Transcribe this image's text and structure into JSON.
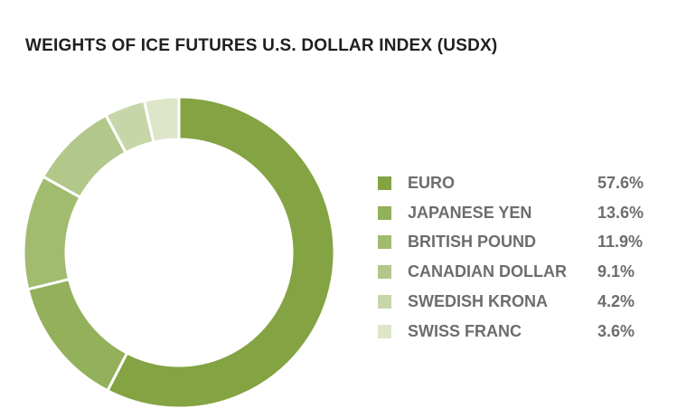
{
  "title": "WEIGHTS OF ICE FUTURES U.S. DOLLAR INDEX (USDX)",
  "chart_data": {
    "type": "pie",
    "variant": "donut",
    "title": "WEIGHTS OF ICE FUTURES U.S. DOLLAR INDEX (USDX)",
    "legend_position": "right",
    "categories": [
      "EURO",
      "JAPANESE YEN",
      "BRITISH POUND",
      "CANADIAN DOLLAR",
      "SWEDISH KRONA",
      "SWISS FRANC"
    ],
    "values": [
      57.6,
      13.6,
      11.9,
      9.1,
      4.2,
      3.6
    ],
    "value_labels": [
      "57.6%",
      "13.6%",
      "11.9%",
      "9.1%",
      "4.2%",
      "3.6%"
    ],
    "colors": [
      "#84a343",
      "#93b05a",
      "#a1bb6f",
      "#b2c78a",
      "#c7d6a9",
      "#dde6c9"
    ]
  }
}
